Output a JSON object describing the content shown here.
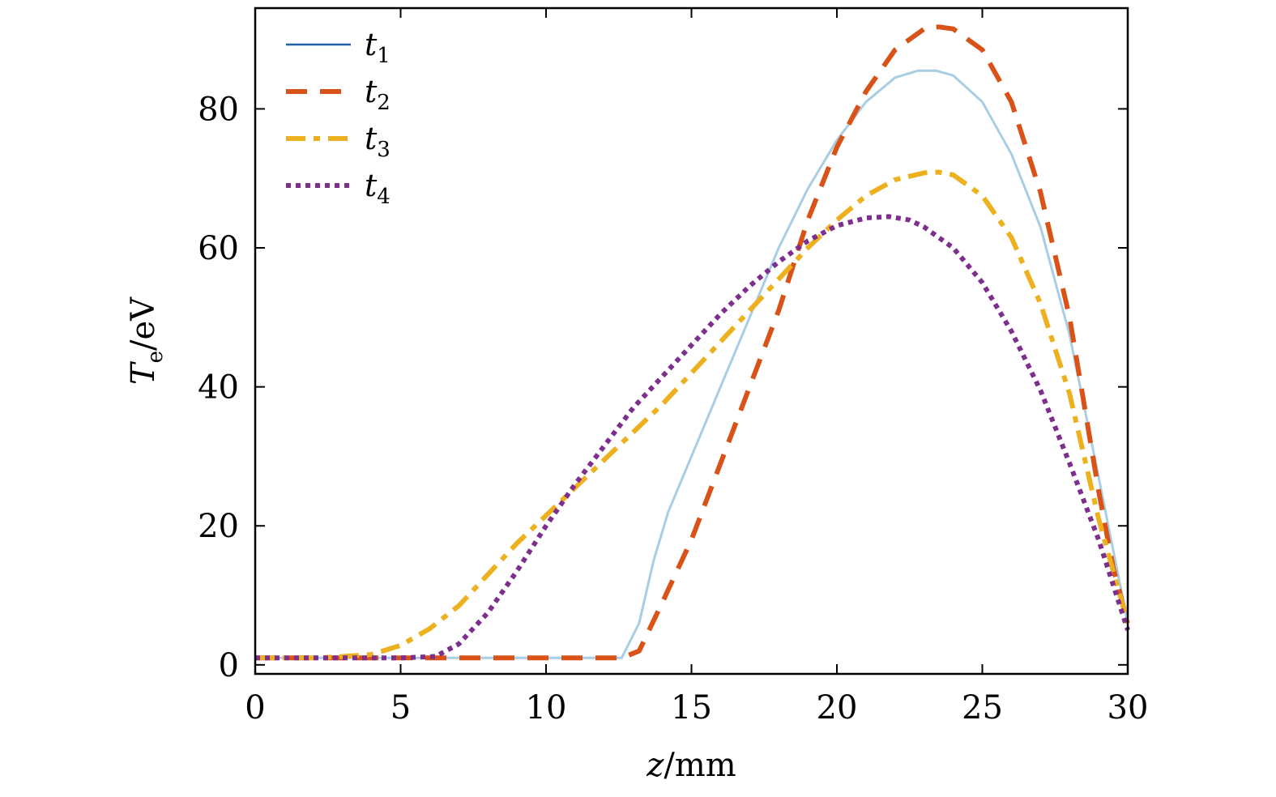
{
  "chart_data": {
    "type": "line",
    "xlabel": {
      "var": "z",
      "unit": "/mm"
    },
    "ylabel": {
      "var": "T",
      "sub": "e",
      "unit": "/eV"
    },
    "xlim": [
      0,
      30
    ],
    "ylim": [
      -1.3,
      94.5
    ],
    "xticks": [
      0,
      5,
      10,
      15,
      20,
      25,
      30
    ],
    "yticks": [
      0,
      20,
      40,
      60,
      80
    ],
    "grid": false,
    "legend_position": "top-left",
    "series": [
      {
        "name": "t1",
        "label_main": "t",
        "label_sub": "1",
        "color": "#a9cde3",
        "legend_color": "#1f5fa8",
        "style": "solid",
        "x": [
          0,
          12.6,
          13.2,
          13.7,
          14.2,
          15,
          16,
          17,
          18,
          19,
          20,
          21,
          22,
          22.8,
          23.4,
          24,
          25,
          26,
          27,
          28,
          29,
          30
        ],
        "y": [
          1,
          1,
          6,
          15,
          22,
          30,
          40,
          50,
          60,
          68.5,
          75.5,
          81,
          84.5,
          85.5,
          85.5,
          84.8,
          81,
          73.5,
          63,
          47.5,
          27,
          6
        ]
      },
      {
        "name": "t2",
        "label_main": "t",
        "label_sub": "2",
        "color": "#d95319",
        "legend_color": "#d95319",
        "style": "dash",
        "x": [
          0,
          12.6,
          13.2,
          14,
          15,
          16,
          17,
          18,
          19,
          20,
          21,
          22,
          23,
          23.5,
          24,
          25,
          26,
          27,
          28,
          29,
          29.5,
          30
        ],
        "y": [
          1,
          1,
          2,
          9,
          18,
          29,
          40,
          51,
          64,
          74.5,
          82.5,
          88.5,
          91.5,
          91.8,
          91.5,
          88.5,
          81,
          68,
          50,
          25,
          14,
          6
        ]
      },
      {
        "name": "t3",
        "label_main": "t",
        "label_sub": "3",
        "color": "#edb120",
        "legend_color": "#edb120",
        "style": "dashdot",
        "x": [
          0,
          2,
          3,
          4,
          5,
          6,
          7,
          8,
          9,
          10,
          11,
          12,
          13,
          14,
          15,
          16,
          17,
          18,
          19,
          20,
          21,
          22,
          23,
          23.5,
          24,
          25,
          26,
          27,
          28,
          29,
          30
        ],
        "y": [
          1,
          1,
          1.2,
          1.5,
          2.8,
          5.2,
          8.5,
          13,
          17.5,
          21.5,
          25.5,
          29.5,
          33.5,
          37.5,
          42,
          46.5,
          51,
          55.5,
          60,
          64,
          67.5,
          69.8,
          70.8,
          70.9,
          70.5,
          67.5,
          61.5,
          52,
          39,
          21,
          6
        ]
      },
      {
        "name": "t4",
        "label_main": "t",
        "label_sub": "4",
        "color": "#7e2f8e",
        "legend_color": "#7e2f8e",
        "style": "dot",
        "x": [
          0,
          5,
          6.2,
          7,
          8,
          9,
          10,
          11,
          12,
          13,
          14,
          15,
          16,
          17,
          18,
          19,
          20,
          21,
          21.8,
          22.5,
          23,
          24,
          25,
          26,
          27,
          28,
          29,
          30
        ],
        "y": [
          1,
          1,
          1.2,
          3,
          7.5,
          13.5,
          20,
          26,
          31.5,
          37,
          41.5,
          46,
          50.5,
          54.5,
          58,
          61,
          63.2,
          64.3,
          64.5,
          64,
          63,
          60,
          55,
          48,
          39.5,
          29,
          18,
          5
        ]
      }
    ]
  }
}
